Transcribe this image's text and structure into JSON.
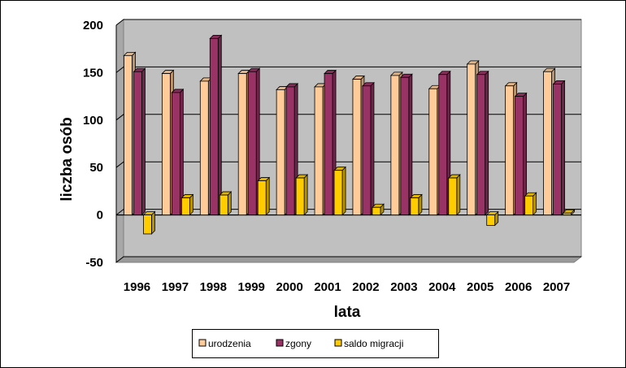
{
  "chart_data": {
    "type": "bar",
    "title": "",
    "xlabel": "lata",
    "ylabel": "liczba osób",
    "ylim": [
      -50,
      200
    ],
    "yticks": [
      -50,
      0,
      50,
      100,
      150,
      200
    ],
    "grid": true,
    "legend_position": "bottom",
    "categories": [
      "1996",
      "1997",
      "1998",
      "1999",
      "2000",
      "2001",
      "2002",
      "2003",
      "2004",
      "2005",
      "2006",
      "2007"
    ],
    "series": [
      {
        "name": "urodzenia",
        "color": "#FFCC99",
        "values": [
          168,
          149,
          141,
          149,
          132,
          135,
          143,
          147,
          133,
          159,
          136,
          151
        ]
      },
      {
        "name": "zgony",
        "color": "#993366",
        "values": [
          151,
          129,
          186,
          151,
          135,
          149,
          136,
          145,
          148,
          148,
          125,
          138
        ]
      },
      {
        "name": "saldo migracji",
        "color": "#FFCC00",
        "values": [
          -20,
          18,
          21,
          36,
          39,
          47,
          8,
          18,
          39,
          -11,
          20,
          2
        ]
      }
    ]
  }
}
